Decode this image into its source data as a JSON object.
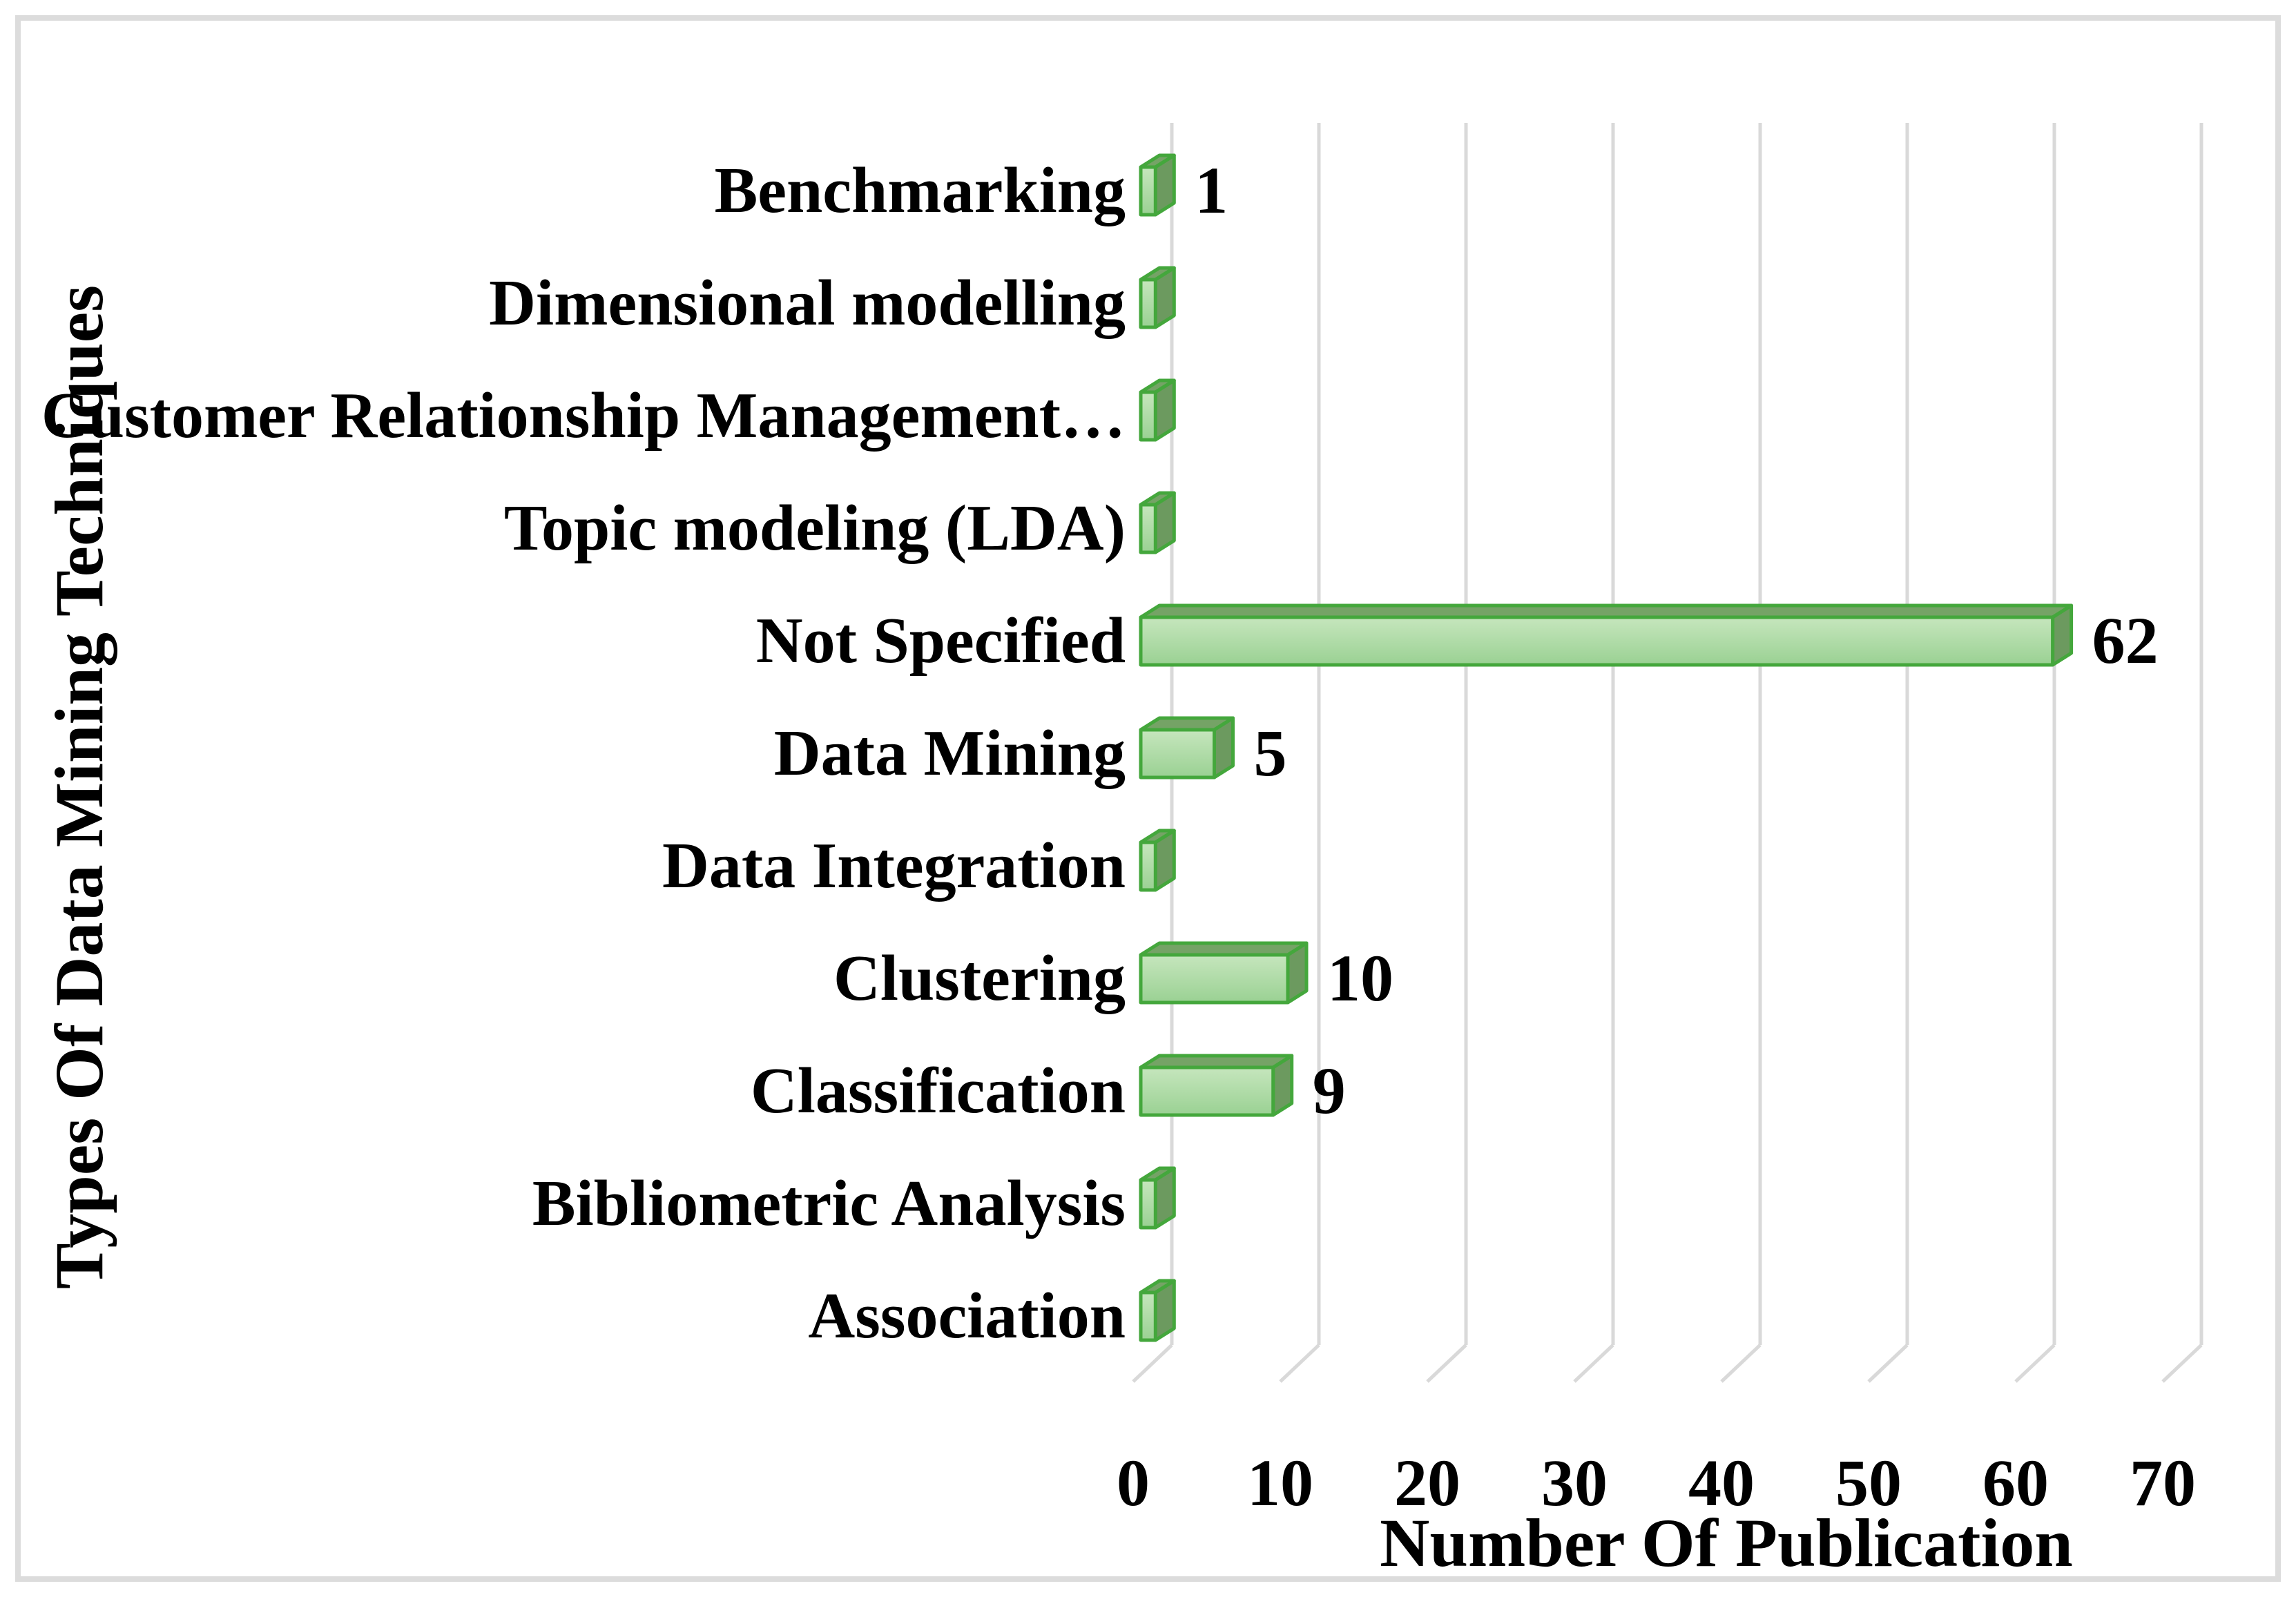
{
  "chart_data": {
    "type": "bar",
    "orientation": "horizontal",
    "style": "3d-horizontal-bar",
    "title": "",
    "xlabel": "Number Of Publication",
    "ylabel": "Types Of Data Mining Techniques",
    "categories": [
      "Benchmarking",
      "Dimensional modelling",
      "Customer Relationship Management…",
      "Topic modeling (LDA)",
      "Not Specified",
      "Data Mining",
      "Data Integration",
      "Clustering",
      "Classification",
      "Bibliometric Analysis",
      "Association"
    ],
    "values": [
      1,
      1,
      1,
      1,
      62,
      5,
      1,
      10,
      9,
      1,
      1
    ],
    "data_labels": [
      "1",
      "",
      "",
      "",
      "62",
      "5",
      "",
      "10",
      "9",
      "",
      ""
    ],
    "x_ticks": [
      "0",
      "10",
      "20",
      "30",
      "40",
      "50",
      "60",
      "70"
    ],
    "xlim": [
      0,
      70
    ],
    "grid": "vertical gridlines every 10 units",
    "legend": "none",
    "colors": {
      "bar_front_top": "#c6e6bd",
      "bar_front_bottom": "#9ad193",
      "bar_top_face": "#75a366",
      "bar_side_face": "#6c9a5f",
      "bar_border": "#44a73c",
      "gridline": "#d9d9d9",
      "frame_border": "#dcdcdc",
      "text": "#000000",
      "background": "#ffffff"
    }
  }
}
